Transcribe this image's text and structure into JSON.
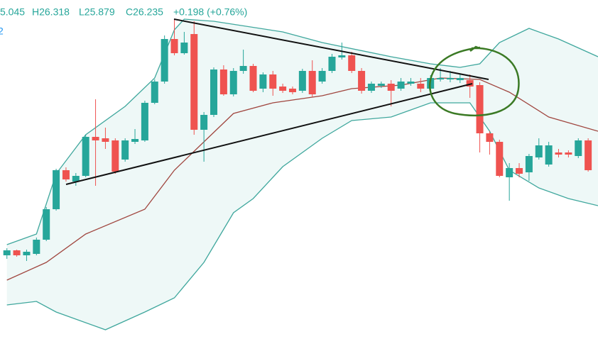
{
  "chart_data": {
    "type": "candlestick",
    "header": [
      "5.045",
      "H26.318",
      "L25.879",
      "C26.235",
      "+0.198 (+0.76%)"
    ],
    "side_label": "2",
    "up_color": "#26a69a",
    "down_color": "#ef5350",
    "xlim": [
      -0.7,
      60
    ],
    "ylim": [
      0,
      502
    ],
    "open": [
      142,
      149,
      142,
      144,
      164,
      207,
      262,
      246,
      254,
      309,
      307,
      304,
      277,
      302,
      304,
      357,
      387,
      447,
      427,
      454,
      319,
      340,
      404,
      369,
      402,
      409,
      377,
      397,
      380,
      377,
      374,
      402,
      387,
      402,
      421,
      424,
      402,
      374,
      381,
      384,
      377,
      384,
      384,
      377,
      390,
      390,
      389,
      389,
      382,
      314,
      302,
      252,
      265,
      259,
      280,
      270,
      287,
      287,
      282,
      304
    ],
    "high": [
      152,
      150,
      150,
      167,
      210,
      264,
      266,
      258,
      312,
      362,
      322,
      307,
      307,
      320,
      360,
      390,
      452,
      474,
      457,
      472,
      344,
      407,
      410,
      406,
      432,
      412,
      400,
      402,
      384,
      380,
      405,
      417,
      406,
      426,
      442,
      429,
      406,
      387,
      387,
      389,
      392,
      392,
      392,
      396,
      406,
      402,
      398,
      397,
      386,
      317,
      305,
      272,
      272,
      285,
      307,
      302,
      292,
      290,
      307,
      307
    ],
    "low": [
      137,
      140,
      134,
      142,
      162,
      205,
      246,
      240,
      252,
      240,
      292,
      257,
      274,
      299,
      302,
      355,
      384,
      424,
      425,
      312,
      274,
      337,
      367,
      366,
      398,
      372,
      372,
      367,
      371,
      369,
      371,
      365,
      384,
      399,
      418,
      399,
      370,
      371,
      378,
      352,
      374,
      381,
      372,
      372,
      387,
      386,
      385,
      364,
      287,
      284,
      252,
      219,
      252,
      247,
      277,
      267,
      280,
      280,
      279,
      260
    ],
    "close": [
      149,
      142,
      147,
      164,
      207,
      262,
      249,
      254,
      309,
      304,
      302,
      260,
      304,
      306,
      357,
      387,
      447,
      427,
      442,
      319,
      340,
      404,
      369,
      402,
      409,
      374,
      397,
      377,
      374,
      372,
      402,
      369,
      402,
      422,
      424,
      402,
      374,
      384,
      384,
      374,
      387,
      387,
      377,
      392,
      392,
      392,
      392,
      380,
      314,
      302,
      254,
      265,
      257,
      282,
      297,
      297,
      284,
      284,
      304,
      262
    ],
    "bands": [
      {
        "color": "#3fa79d",
        "x": [
          0,
          3,
          5,
          8,
          12,
          15,
          17,
          18,
          21,
          28,
          32,
          39,
          43,
          46,
          48,
          50,
          53,
          56,
          60
        ],
        "values": [
          157,
          172,
          257,
          312,
          352,
          392,
          460,
          475,
          472,
          457,
          442,
          422,
          412,
          407,
          412,
          442,
          462,
          447,
          422
        ]
      },
      {
        "color": "#a0463f",
        "x": [
          0,
          4,
          8,
          14,
          17,
          20,
          23,
          27,
          32,
          35,
          40,
          44,
          48,
          51,
          55,
          60
        ],
        "values": [
          107,
          132,
          172,
          207,
          262,
          302,
          342,
          357,
          367,
          377,
          382,
          392,
          390,
          372,
          337,
          317
        ]
      },
      {
        "color": "#3fa79d",
        "x": [
          0,
          3,
          5,
          10,
          14,
          17,
          20,
          23,
          25,
          28,
          32,
          35,
          39,
          43,
          47,
          49,
          51,
          54,
          57,
          60
        ],
        "values": [
          72,
          77,
          62,
          37,
          62,
          82,
          132,
          202,
          222,
          267,
          307,
          332,
          337,
          357,
          357,
          317,
          262,
          237,
          222,
          212
        ]
      }
    ],
    "band_fill": "#eef8f7"
  }
}
